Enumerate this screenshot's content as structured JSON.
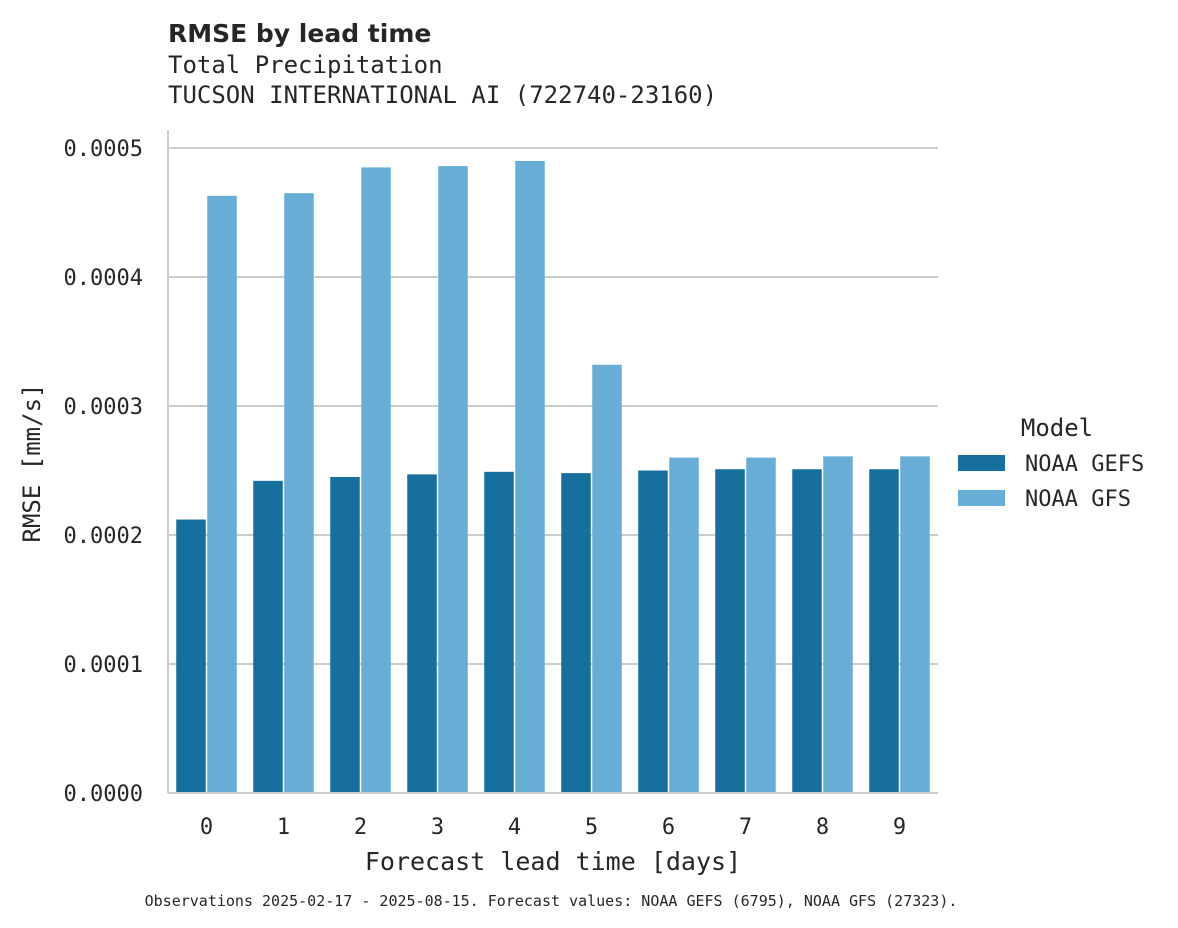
{
  "chart_data": {
    "type": "bar",
    "title": "RMSE by lead time",
    "subtitle_lines": [
      "Total Precipitation",
      "TUCSON INTERNATIONAL AI (722740-23160)"
    ],
    "xlabel": "Forecast lead time [days]",
    "ylabel": "RMSE [mm/s]",
    "categories": [
      "0",
      "1",
      "2",
      "3",
      "4",
      "5",
      "6",
      "7",
      "8",
      "9"
    ],
    "series": [
      {
        "name": "NOAA GEFS",
        "color": "#176f9e",
        "values": [
          0.000212,
          0.000242,
          0.000245,
          0.000247,
          0.000249,
          0.000248,
          0.00025,
          0.000251,
          0.000251,
          0.000251
        ]
      },
      {
        "name": "NOAA GFS",
        "color": "#67add6",
        "values": [
          0.000463,
          0.000465,
          0.000485,
          0.000486,
          0.00049,
          0.000332,
          0.00026,
          0.00026,
          0.000261,
          0.000261
        ]
      }
    ],
    "ylim": [
      0,
      0.000514
    ],
    "yticks": [
      "0.0000",
      "0.0001",
      "0.0002",
      "0.0003",
      "0.0004",
      "0.0005"
    ],
    "ytick_values": [
      0,
      0.0001,
      0.0002,
      0.0003,
      0.0004,
      0.0005
    ],
    "grid": "horizontal",
    "legend": {
      "title": "Model",
      "placement": "right"
    }
  },
  "footnote": "Observations 2025-02-17 - 2025-08-15. Forecast values: NOAA GEFS (6795), NOAA GFS (27323)."
}
